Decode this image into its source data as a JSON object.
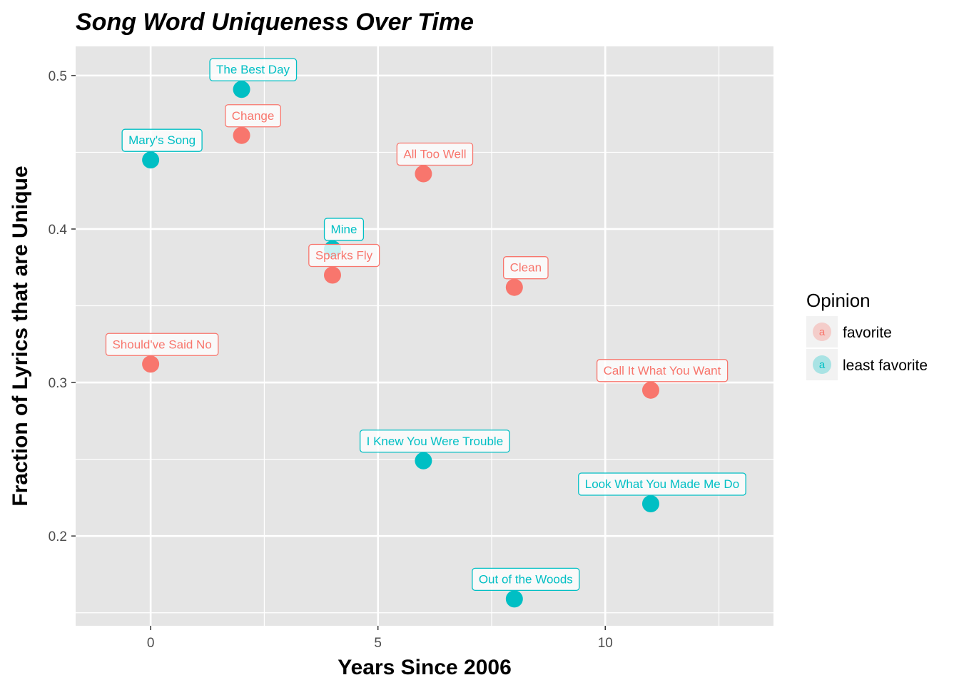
{
  "chart_data": {
    "type": "scatter",
    "title": "Song Word Uniqueness Over Time",
    "xlabel": "Years Since 2006",
    "ylabel": "Fraction of Lyrics that are Unique",
    "xlim": [
      -1.65,
      13.7
    ],
    "ylim": [
      0.1415,
      0.519
    ],
    "x_ticks": [
      0,
      5,
      10
    ],
    "y_ticks": [
      0.2,
      0.3,
      0.4,
      0.5
    ],
    "x_tick_labels": [
      "0",
      "5",
      "10"
    ],
    "y_tick_labels": [
      "0.2",
      "0.3",
      "0.4",
      "0.5"
    ],
    "grid": true,
    "legend": {
      "title": "Opinion",
      "position": "right",
      "glyph": "a",
      "entries": [
        {
          "label": "favorite",
          "color": "#F8766D"
        },
        {
          "label": "least favorite",
          "color": "#00BFC4"
        }
      ]
    },
    "points": [
      {
        "label": "The Best Day",
        "x": 2,
        "y": 0.491,
        "group": "least favorite"
      },
      {
        "label": "Change",
        "x": 2,
        "y": 0.461,
        "group": "favorite"
      },
      {
        "label": "Mary's Song",
        "x": 0,
        "y": 0.445,
        "group": "least favorite"
      },
      {
        "label": "All Too Well",
        "x": 6,
        "y": 0.436,
        "group": "favorite"
      },
      {
        "label": "Mine",
        "x": 4,
        "y": 0.387,
        "group": "least favorite"
      },
      {
        "label": "Sparks Fly",
        "x": 4,
        "y": 0.37,
        "group": "favorite"
      },
      {
        "label": "Clean",
        "x": 8,
        "y": 0.362,
        "group": "favorite"
      },
      {
        "label": "Should've Said No",
        "x": 0,
        "y": 0.312,
        "group": "favorite"
      },
      {
        "label": "Call It What You Want",
        "x": 11,
        "y": 0.295,
        "group": "favorite"
      },
      {
        "label": "I Knew You Were Trouble",
        "x": 6,
        "y": 0.249,
        "group": "least favorite"
      },
      {
        "label": "Look What You Made Me Do",
        "x": 11,
        "y": 0.221,
        "group": "least favorite"
      },
      {
        "label": "Out of the Woods",
        "x": 8,
        "y": 0.159,
        "group": "least favorite"
      }
    ]
  }
}
